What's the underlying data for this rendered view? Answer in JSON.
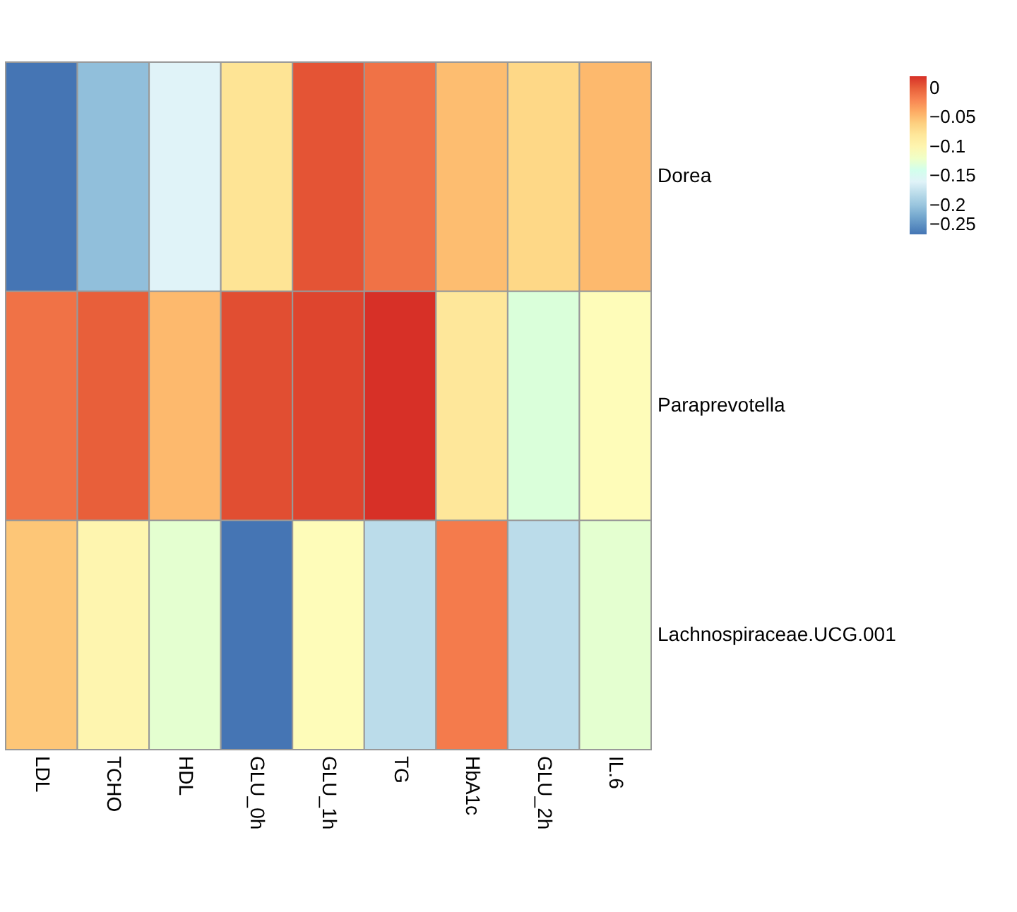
{
  "chart_data": {
    "type": "heatmap",
    "categories": [
      "LDL",
      "TCHO",
      "HDL",
      "GLU_0h",
      "GLU_1h",
      "TG",
      "HbA1c",
      "GLU_2h",
      "IL.6"
    ],
    "y_categories": [
      "Dorea",
      "Paraprevotella",
      "Lachnospiraceae.UCG.001"
    ],
    "cells": [
      [
        -0.25,
        -0.205,
        -0.16,
        -0.075,
        0.005,
        -0.01,
        -0.05,
        -0.065,
        -0.048
      ],
      [
        -0.01,
        0.0,
        -0.048,
        0.008,
        0.012,
        0.02,
        -0.08,
        -0.13,
        -0.11
      ],
      [
        -0.055,
        -0.1,
        -0.125,
        -0.25,
        -0.11,
        -0.18,
        -0.015,
        -0.18,
        -0.125
      ]
    ],
    "clim": [
      -0.25,
      0.02
    ],
    "cticks": [
      -0.25,
      -0.2,
      -0.15,
      -0.1,
      -0.05,
      0
    ]
  }
}
